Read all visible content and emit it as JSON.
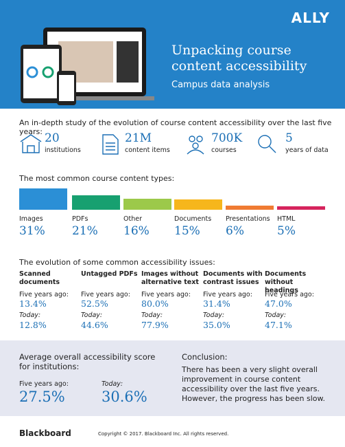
{
  "header": {
    "logo": "ALLY",
    "title": "Unpacking course content accessibility",
    "subtitle": "Campus data analysis"
  },
  "intro": "An in-depth study of the evolution of course content accessibility over the last five years:",
  "stats": [
    {
      "number": "20",
      "label": "institutions"
    },
    {
      "number": "21M",
      "label": "content items"
    },
    {
      "number": "700K",
      "label": "courses"
    },
    {
      "number": "5",
      "label": "years of data"
    }
  ],
  "content_types": {
    "heading": "The most common course content types:",
    "categories": [
      "Images",
      "PDFs",
      "Other",
      "Documents",
      "Presentations",
      "HTML"
    ],
    "values": [
      31,
      21,
      16,
      15,
      6,
      5
    ],
    "value_labels": [
      "31%",
      "21%",
      "16%",
      "15%",
      "6%",
      "5%"
    ],
    "colors": [
      "#2b8fd6",
      "#17a070",
      "#9cc94a",
      "#f6b61c",
      "#f07b32",
      "#d6245d"
    ]
  },
  "issues": {
    "heading": "The evolution of some common accessibility issues:",
    "before_label": "Five years ago:",
    "after_label": "Today:",
    "items": [
      {
        "title": "Scanned documents",
        "before": "13.4%",
        "after": "12.8%"
      },
      {
        "title": "Untagged PDFs",
        "before": "52.5%",
        "after": "44.6%"
      },
      {
        "title": "Images without alternative text",
        "before": "80.0%",
        "after": "77.9%"
      },
      {
        "title": "Documents with contrast issues",
        "before": "31.4%",
        "after": "35.0%"
      },
      {
        "title": "Documents without headings",
        "before": "47.0%",
        "after": "47.1%"
      }
    ]
  },
  "score": {
    "heading": "Average overall accessibility score for institutions:",
    "before_label": "Five years ago:",
    "before": "27.5%",
    "after_label": "Today:",
    "after": "30.6%"
  },
  "conclusion": {
    "heading": "Conclusion:",
    "text": "There has been a very slight overall improvement in course content accessibility over the last five years. However, the progress has been slow."
  },
  "footer": {
    "brand": "Blackboard",
    "copyright": "Copyright © 2017. Blackboard Inc. All rights reserved."
  }
}
